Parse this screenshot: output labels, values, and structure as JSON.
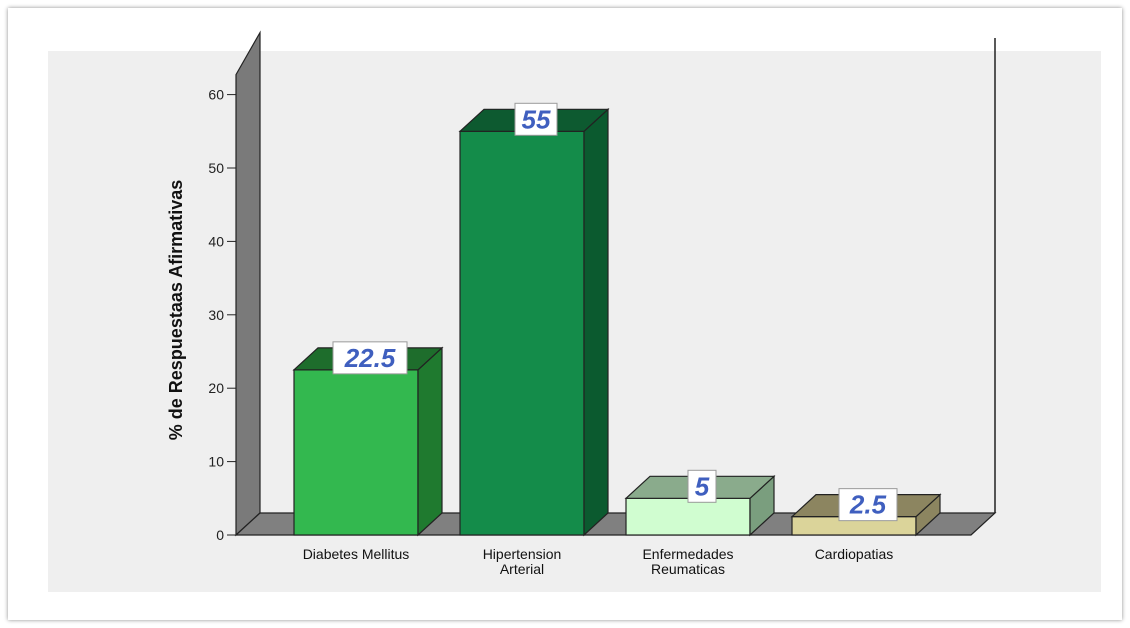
{
  "chart_data": {
    "type": "bar",
    "categories": [
      "Diabetes Mellitus",
      "Hipertension Arterial",
      "Enfermedades Reumaticas",
      "Cardiopatias"
    ],
    "category_lines": [
      [
        "Diabetes Mellitus"
      ],
      [
        "Hipertension",
        "Arterial"
      ],
      [
        "Enfermedades",
        "Reumaticas"
      ],
      [
        "Cardiopatias"
      ]
    ],
    "values": [
      22.5,
      55,
      5,
      2.5
    ],
    "data_labels": [
      "22.5",
      "55",
      "5",
      "2.5"
    ],
    "title": "",
    "xlabel": "",
    "ylabel": "% de Respuestaas Afirmativas",
    "ylim": [
      0,
      60
    ],
    "yticks": [
      "0",
      "10",
      "20",
      "30",
      "40",
      "50",
      "60"
    ],
    "grid": false,
    "legend": "none",
    "style": "3d",
    "colors": {
      "bars": [
        {
          "front": "#33b84f",
          "side": "#1f7a2f",
          "top": "#1e6d2c"
        },
        {
          "front": "#148c4a",
          "side": "#0b5a2f",
          "top": "#0d5a30"
        },
        {
          "front": "#d0fdd0",
          "side": "#7a9e7e",
          "top": "#8aab8c"
        },
        {
          "front": "#dbd49a",
          "side": "#8c8560",
          "top": "#8c8560"
        }
      ],
      "wall": "#7a7a7a",
      "floor": "#808080",
      "plot_background": "#efefef",
      "data_label_text": "#3f5fbf"
    }
  }
}
